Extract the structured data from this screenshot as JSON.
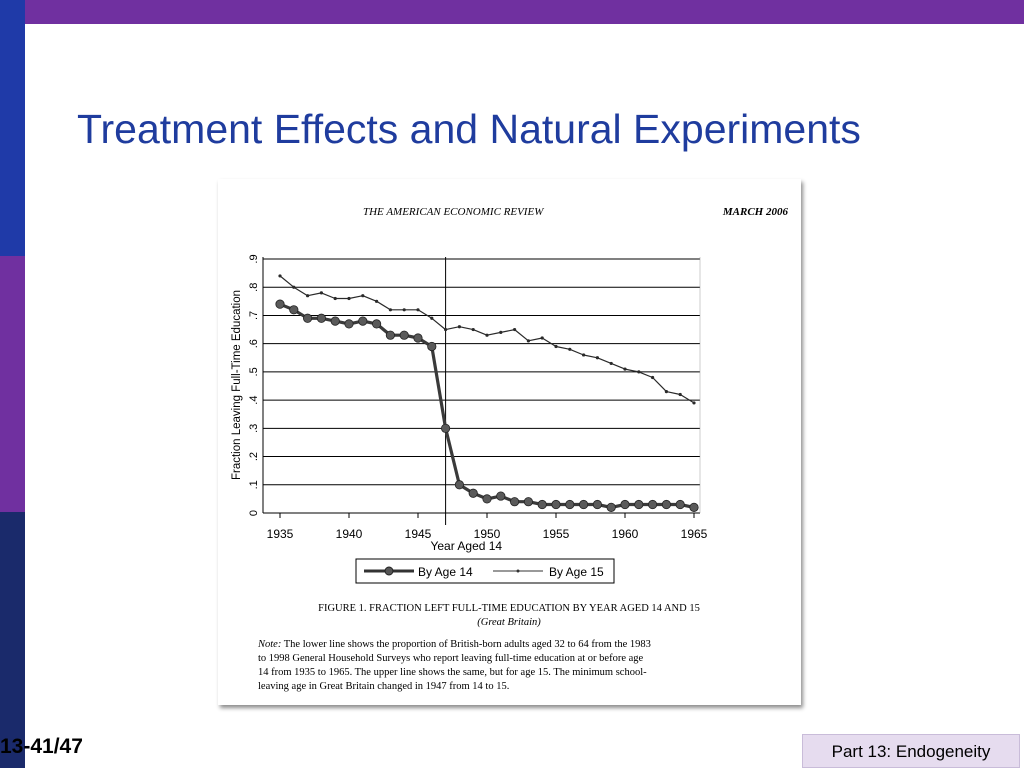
{
  "slide": {
    "title": "Treatment Effects and Natural Experiments",
    "number": "13-41/47",
    "part_label": "Part 13: Endogeneity"
  },
  "figure": {
    "journal": "THE AMERICAN ECONOMIC REVIEW",
    "date": "MARCH 2006",
    "caption_title": "FIGURE 1. FRACTION LEFT FULL-TIME EDUCATION BY YEAR AGED 14 AND 15",
    "caption_sub": "(Great Britain)",
    "note_label": "Note:",
    "note_lines": [
      " The lower line shows the proportion of British-born adults aged 32 to 64 from the 1983",
      "to 1998 General Household Surveys who report leaving full-time education at or before age",
      "14 from 1935 to 1965. The upper line shows the same, but for age 15. The minimum school-",
      "leaving age in Great Britain changed in 1947 from 14 to 15."
    ]
  },
  "chart_data": {
    "type": "line",
    "xlabel": "Year Aged 14",
    "ylabel": "Fraction Leaving Full-Time Education",
    "xlim": [
      1935,
      1965
    ],
    "ylim": [
      0,
      0.9
    ],
    "x_ticks": [
      "1935",
      "1940",
      "1945",
      "1950",
      "1955",
      "1960",
      "1965"
    ],
    "x_tick_values": [
      1935,
      1940,
      1945,
      1950,
      1955,
      1960,
      1965
    ],
    "y_ticks": [
      "0",
      ".1",
      ".2",
      ".3",
      ".4",
      ".5",
      ".6",
      ".7",
      ".8",
      ".9"
    ],
    "y_tick_values": [
      0,
      0.1,
      0.2,
      0.3,
      0.4,
      0.5,
      0.6,
      0.7,
      0.8,
      0.9
    ],
    "grid": true,
    "reference_line_x": 1947,
    "legend_position": "bottom",
    "x": [
      1935,
      1936,
      1937,
      1938,
      1939,
      1940,
      1941,
      1942,
      1943,
      1944,
      1945,
      1946,
      1947,
      1948,
      1949,
      1950,
      1951,
      1952,
      1953,
      1954,
      1955,
      1956,
      1957,
      1958,
      1959,
      1960,
      1961,
      1962,
      1963,
      1964,
      1965
    ],
    "series": [
      {
        "name": "By Age 14",
        "marker": "circle",
        "values": [
          0.74,
          0.72,
          0.69,
          0.69,
          0.68,
          0.67,
          0.68,
          0.67,
          0.63,
          0.63,
          0.62,
          0.59,
          0.3,
          0.1,
          0.07,
          0.05,
          0.06,
          0.04,
          0.04,
          0.03,
          0.03,
          0.03,
          0.03,
          0.03,
          0.02,
          0.03,
          0.03,
          0.03,
          0.03,
          0.03,
          0.02
        ]
      },
      {
        "name": "By Age 15",
        "marker": "dot",
        "values": [
          0.84,
          0.8,
          0.77,
          0.78,
          0.76,
          0.76,
          0.77,
          0.75,
          0.72,
          0.72,
          0.72,
          0.69,
          0.65,
          0.66,
          0.65,
          0.63,
          0.64,
          0.65,
          0.61,
          0.62,
          0.59,
          0.58,
          0.56,
          0.55,
          0.53,
          0.51,
          0.5,
          0.48,
          0.43,
          0.42,
          0.39
        ]
      }
    ]
  }
}
